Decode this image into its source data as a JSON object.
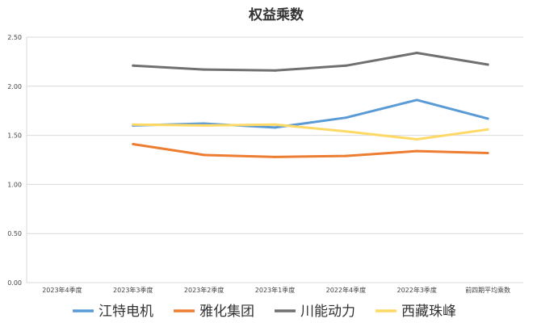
{
  "chart_data": {
    "type": "line",
    "title": "权益乘数",
    "xlabel": "",
    "ylabel": "",
    "categories": [
      "2023年4季度",
      "2023年3季度",
      "2023年2季度",
      "2023年1季度",
      "2022年4季度",
      "2022年3季度",
      "前四期平均乘数"
    ],
    "ylim": [
      0,
      2.5
    ],
    "yticks": [
      "0.00",
      "0.50",
      "1.00",
      "1.50",
      "2.00",
      "2.50"
    ],
    "grid": true,
    "legend": "bottom",
    "series": [
      {
        "name": "江特电机",
        "color": "#5b9bd5",
        "values": [
          null,
          1.6,
          1.62,
          1.58,
          1.68,
          1.86,
          1.67
        ]
      },
      {
        "name": "雅化集团",
        "color": "#ed7d31",
        "values": [
          null,
          1.41,
          1.3,
          1.28,
          1.29,
          1.34,
          1.32
        ]
      },
      {
        "name": "川能动力",
        "color": "#707070",
        "values": [
          null,
          2.21,
          2.17,
          2.16,
          2.21,
          2.34,
          2.22
        ]
      },
      {
        "name": "西藏珠峰",
        "color": "#ffd966",
        "values": [
          null,
          1.61,
          1.6,
          1.61,
          1.54,
          1.46,
          1.56
        ]
      }
    ]
  }
}
